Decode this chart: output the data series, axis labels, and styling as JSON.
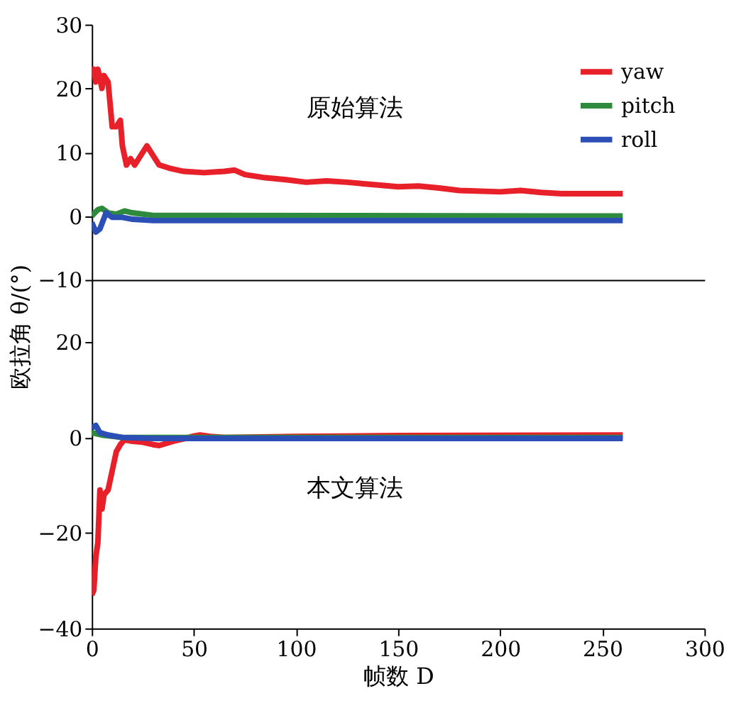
{
  "chart_data": [
    {
      "type": "line",
      "ylabel": "欧拉角 θ/(°)",
      "annotations": [
        "原始算法"
      ],
      "xlim": [
        0,
        300
      ],
      "ylim": [
        -10,
        30
      ],
      "yticks": [
        -10,
        0,
        10,
        20,
        30
      ],
      "tick_labels": "y",
      "grid": false,
      "legend": "top right",
      "line_style": "solid",
      "marker": "none",
      "series": [
        {
          "name": "yaw",
          "color": "#e8202a",
          "x": [
            0,
            1,
            2,
            3,
            5,
            6,
            8,
            10,
            12,
            14,
            15,
            17,
            19,
            21,
            23,
            27,
            29,
            33,
            38,
            45,
            55,
            65,
            70,
            75,
            85,
            95,
            105,
            115,
            125,
            135,
            150,
            160,
            170,
            180,
            200,
            210,
            220,
            230,
            260
          ],
          "values": [
            22,
            23,
            21,
            23,
            20,
            22,
            21,
            14,
            14,
            15,
            11,
            8,
            9,
            8,
            9,
            11,
            10,
            8,
            7.5,
            7,
            6.8,
            7,
            7.2,
            6.5,
            6,
            5.7,
            5.3,
            5.5,
            5.3,
            5,
            4.6,
            4.7,
            4.4,
            4,
            3.8,
            4,
            3.7,
            3.5,
            3.5
          ]
        },
        {
          "name": "pitch",
          "color": "#2e8b3e",
          "x": [
            0,
            3,
            5,
            8,
            12,
            16,
            20,
            30,
            260
          ],
          "values": [
            0,
            1,
            1.2,
            0.5,
            0.3,
            0.8,
            0.5,
            0.1,
            0
          ]
        },
        {
          "name": "roll",
          "color": "#2b4fb5",
          "x": [
            0,
            2,
            4,
            7,
            10,
            15,
            20,
            30,
            260
          ],
          "values": [
            -1,
            -2.5,
            -2,
            0.5,
            -0.2,
            -0.2,
            -0.5,
            -0.7,
            -0.7
          ]
        }
      ]
    },
    {
      "type": "line",
      "xlabel": "帧数 D",
      "annotations": [
        "本文算法"
      ],
      "xlim": [
        0,
        300
      ],
      "xticks": [
        0,
        50,
        100,
        150,
        200,
        250,
        300
      ],
      "ylim": [
        -40,
        33
      ],
      "yticks": [
        -40,
        -20,
        0,
        20
      ],
      "grid": false,
      "legend": false,
      "line_style": "solid",
      "marker": "none",
      "series": [
        {
          "color": "#e8202a",
          "x": [
            0,
            1,
            2,
            3,
            4,
            5,
            6,
            8,
            10,
            12,
            14,
            16,
            20,
            25,
            30,
            33,
            40,
            45,
            50,
            53,
            58,
            65,
            100,
            150,
            260
          ],
          "values": [
            -33,
            -32,
            -25,
            -22,
            -11,
            -15,
            -12,
            -11,
            -7,
            -3,
            -1.5,
            -0.5,
            -0.8,
            -1,
            -1.5,
            -1.7,
            -0.8,
            -0.3,
            0.3,
            0.5,
            0.2,
            0,
            0.2,
            0.4,
            0.5
          ]
        },
        {
          "color": "#2e8b3e",
          "x": [
            0,
            5,
            15,
            260
          ],
          "values": [
            1,
            0.5,
            0,
            0
          ]
        },
        {
          "color": "#2b4fb5",
          "x": [
            0,
            2,
            4,
            8,
            15,
            30,
            260
          ],
          "values": [
            2,
            2.5,
            1,
            0.5,
            0,
            -0.2,
            -0.2
          ]
        }
      ]
    }
  ]
}
